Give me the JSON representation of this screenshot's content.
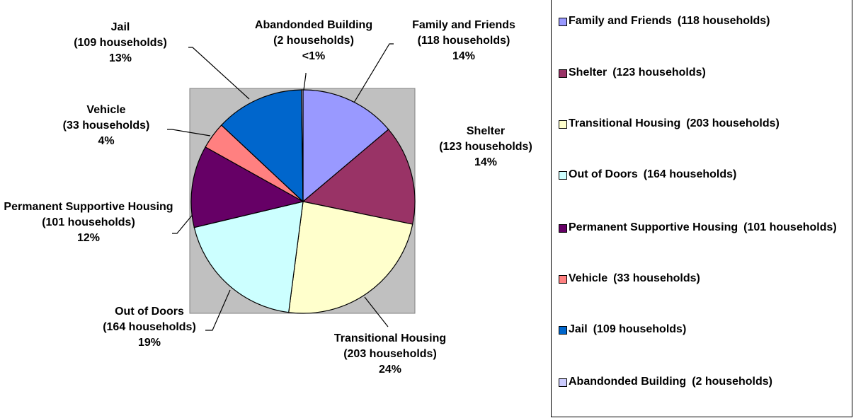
{
  "chart_data": {
    "type": "pie",
    "categories": [
      "Family and Friends",
      "Shelter",
      "Transitional Housing",
      "Out of Doors",
      "Permanent Supportive Housing",
      "Vehicle",
      "Jail",
      "Abandonded Building"
    ],
    "values": [
      118,
      123,
      203,
      164,
      101,
      33,
      109,
      2
    ],
    "value_labels": [
      "(118 households)",
      "(123 households)",
      "(203 households)",
      "(164 households)",
      "(101 households)",
      "(33 households)",
      "(109 households)",
      "(2 households)"
    ],
    "percent_labels": [
      "14%",
      "14%",
      "24%",
      "19%",
      "12%",
      "4%",
      "13%",
      "<1%"
    ],
    "colors": [
      "#9999ff",
      "#993366",
      "#ffffcc",
      "#ccffff",
      "#660066",
      "#ff8080",
      "#0066cc",
      "#ccccff"
    ]
  }
}
